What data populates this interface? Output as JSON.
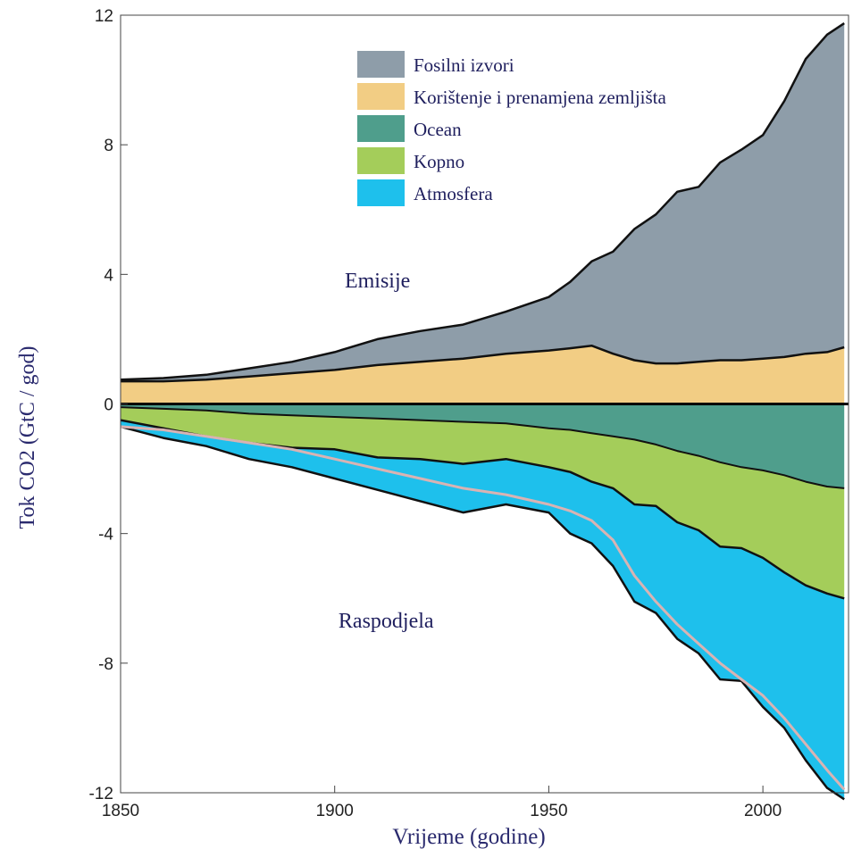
{
  "chart_data": {
    "type": "area",
    "xlabel": "Vrijeme (godine)",
    "ylabel": "Tok CO2 (GtC / god)",
    "xlim": [
      1850,
      2020
    ],
    "ylim": [
      -12,
      12
    ],
    "x_ticks": [
      1850,
      1900,
      1950,
      2000
    ],
    "y_ticks": [
      12,
      8,
      4,
      0,
      -4,
      -8,
      -12
    ],
    "y_tick_labels": [
      "12",
      "8",
      "4",
      "0",
      "-4",
      "-8",
      "-12"
    ],
    "legend_position": "top-center",
    "annotations": [
      {
        "text": "Emisije",
        "x": 1910,
        "y": 3.6
      },
      {
        "text": "Raspodjela",
        "x": 1912,
        "y": -6.9
      }
    ],
    "colors": {
      "fossil": "#8e9da9",
      "land_use": "#f2cd84",
      "ocean": "#4f9e8c",
      "land": "#a4cd5a",
      "atmosphere": "#1ec0ec",
      "growth_line": "#d9b3b3"
    },
    "x": [
      1850,
      1860,
      1870,
      1880,
      1890,
      1900,
      1910,
      1920,
      1930,
      1940,
      1950,
      1955,
      1960,
      1965,
      1970,
      1975,
      1980,
      1985,
      1990,
      1995,
      2000,
      2005,
      2010,
      2015,
      2019
    ],
    "series": [
      {
        "key": "fossil",
        "name": "Fosilni izvori",
        "values": [
          0.05,
          0.1,
          0.15,
          0.25,
          0.35,
          0.55,
          0.8,
          0.95,
          1.05,
          1.3,
          1.65,
          2.05,
          2.6,
          3.15,
          4.05,
          4.6,
          5.3,
          5.4,
          6.1,
          6.5,
          6.9,
          7.9,
          9.1,
          9.8,
          10.0
        ]
      },
      {
        "key": "land_use",
        "name": "Korištenje i prenamjena zemljišta",
        "values": [
          0.7,
          0.7,
          0.75,
          0.85,
          0.95,
          1.05,
          1.2,
          1.3,
          1.4,
          1.55,
          1.65,
          1.72,
          1.8,
          1.55,
          1.35,
          1.25,
          1.25,
          1.3,
          1.35,
          1.35,
          1.4,
          1.45,
          1.55,
          1.6,
          1.75
        ]
      },
      {
        "key": "ocean",
        "name": "Ocean",
        "values": [
          -0.1,
          -0.15,
          -0.2,
          -0.3,
          -0.35,
          -0.4,
          -0.45,
          -0.5,
          -0.55,
          -0.6,
          -0.75,
          -0.8,
          -0.9,
          -1.0,
          -1.1,
          -1.25,
          -1.45,
          -1.6,
          -1.8,
          -1.95,
          -2.05,
          -2.2,
          -2.4,
          -2.55,
          -2.6
        ]
      },
      {
        "key": "land",
        "name": "Kopno",
        "values": [
          -0.4,
          -0.6,
          -0.8,
          -0.9,
          -1.0,
          -1.0,
          -1.2,
          -1.2,
          -1.3,
          -1.1,
          -1.2,
          -1.3,
          -1.5,
          -1.6,
          -2.0,
          -1.9,
          -2.2,
          -2.3,
          -2.6,
          -2.5,
          -2.7,
          -3.0,
          -3.2,
          -3.3,
          -3.4
        ]
      },
      {
        "key": "atmosphere",
        "name": "Atmosfera",
        "values": [
          -0.2,
          -0.3,
          -0.3,
          -0.5,
          -0.6,
          -0.9,
          -1.0,
          -1.3,
          -1.5,
          -1.4,
          -1.4,
          -1.9,
          -1.9,
          -2.4,
          -3.0,
          -3.3,
          -3.6,
          -3.8,
          -4.1,
          -4.1,
          -4.6,
          -4.8,
          -5.4,
          -6.0,
          -6.2
        ]
      }
    ],
    "growth_line": {
      "name": "",
      "values": [
        -0.7,
        -0.8,
        -1.0,
        -1.2,
        -1.4,
        -1.7,
        -2.0,
        -2.3,
        -2.6,
        -2.8,
        -3.1,
        -3.3,
        -3.6,
        -4.2,
        -5.3,
        -6.1,
        -6.8,
        -7.4,
        -8.0,
        -8.5,
        -9.0,
        -9.7,
        -10.5,
        -11.3,
        -11.9
      ]
    }
  }
}
